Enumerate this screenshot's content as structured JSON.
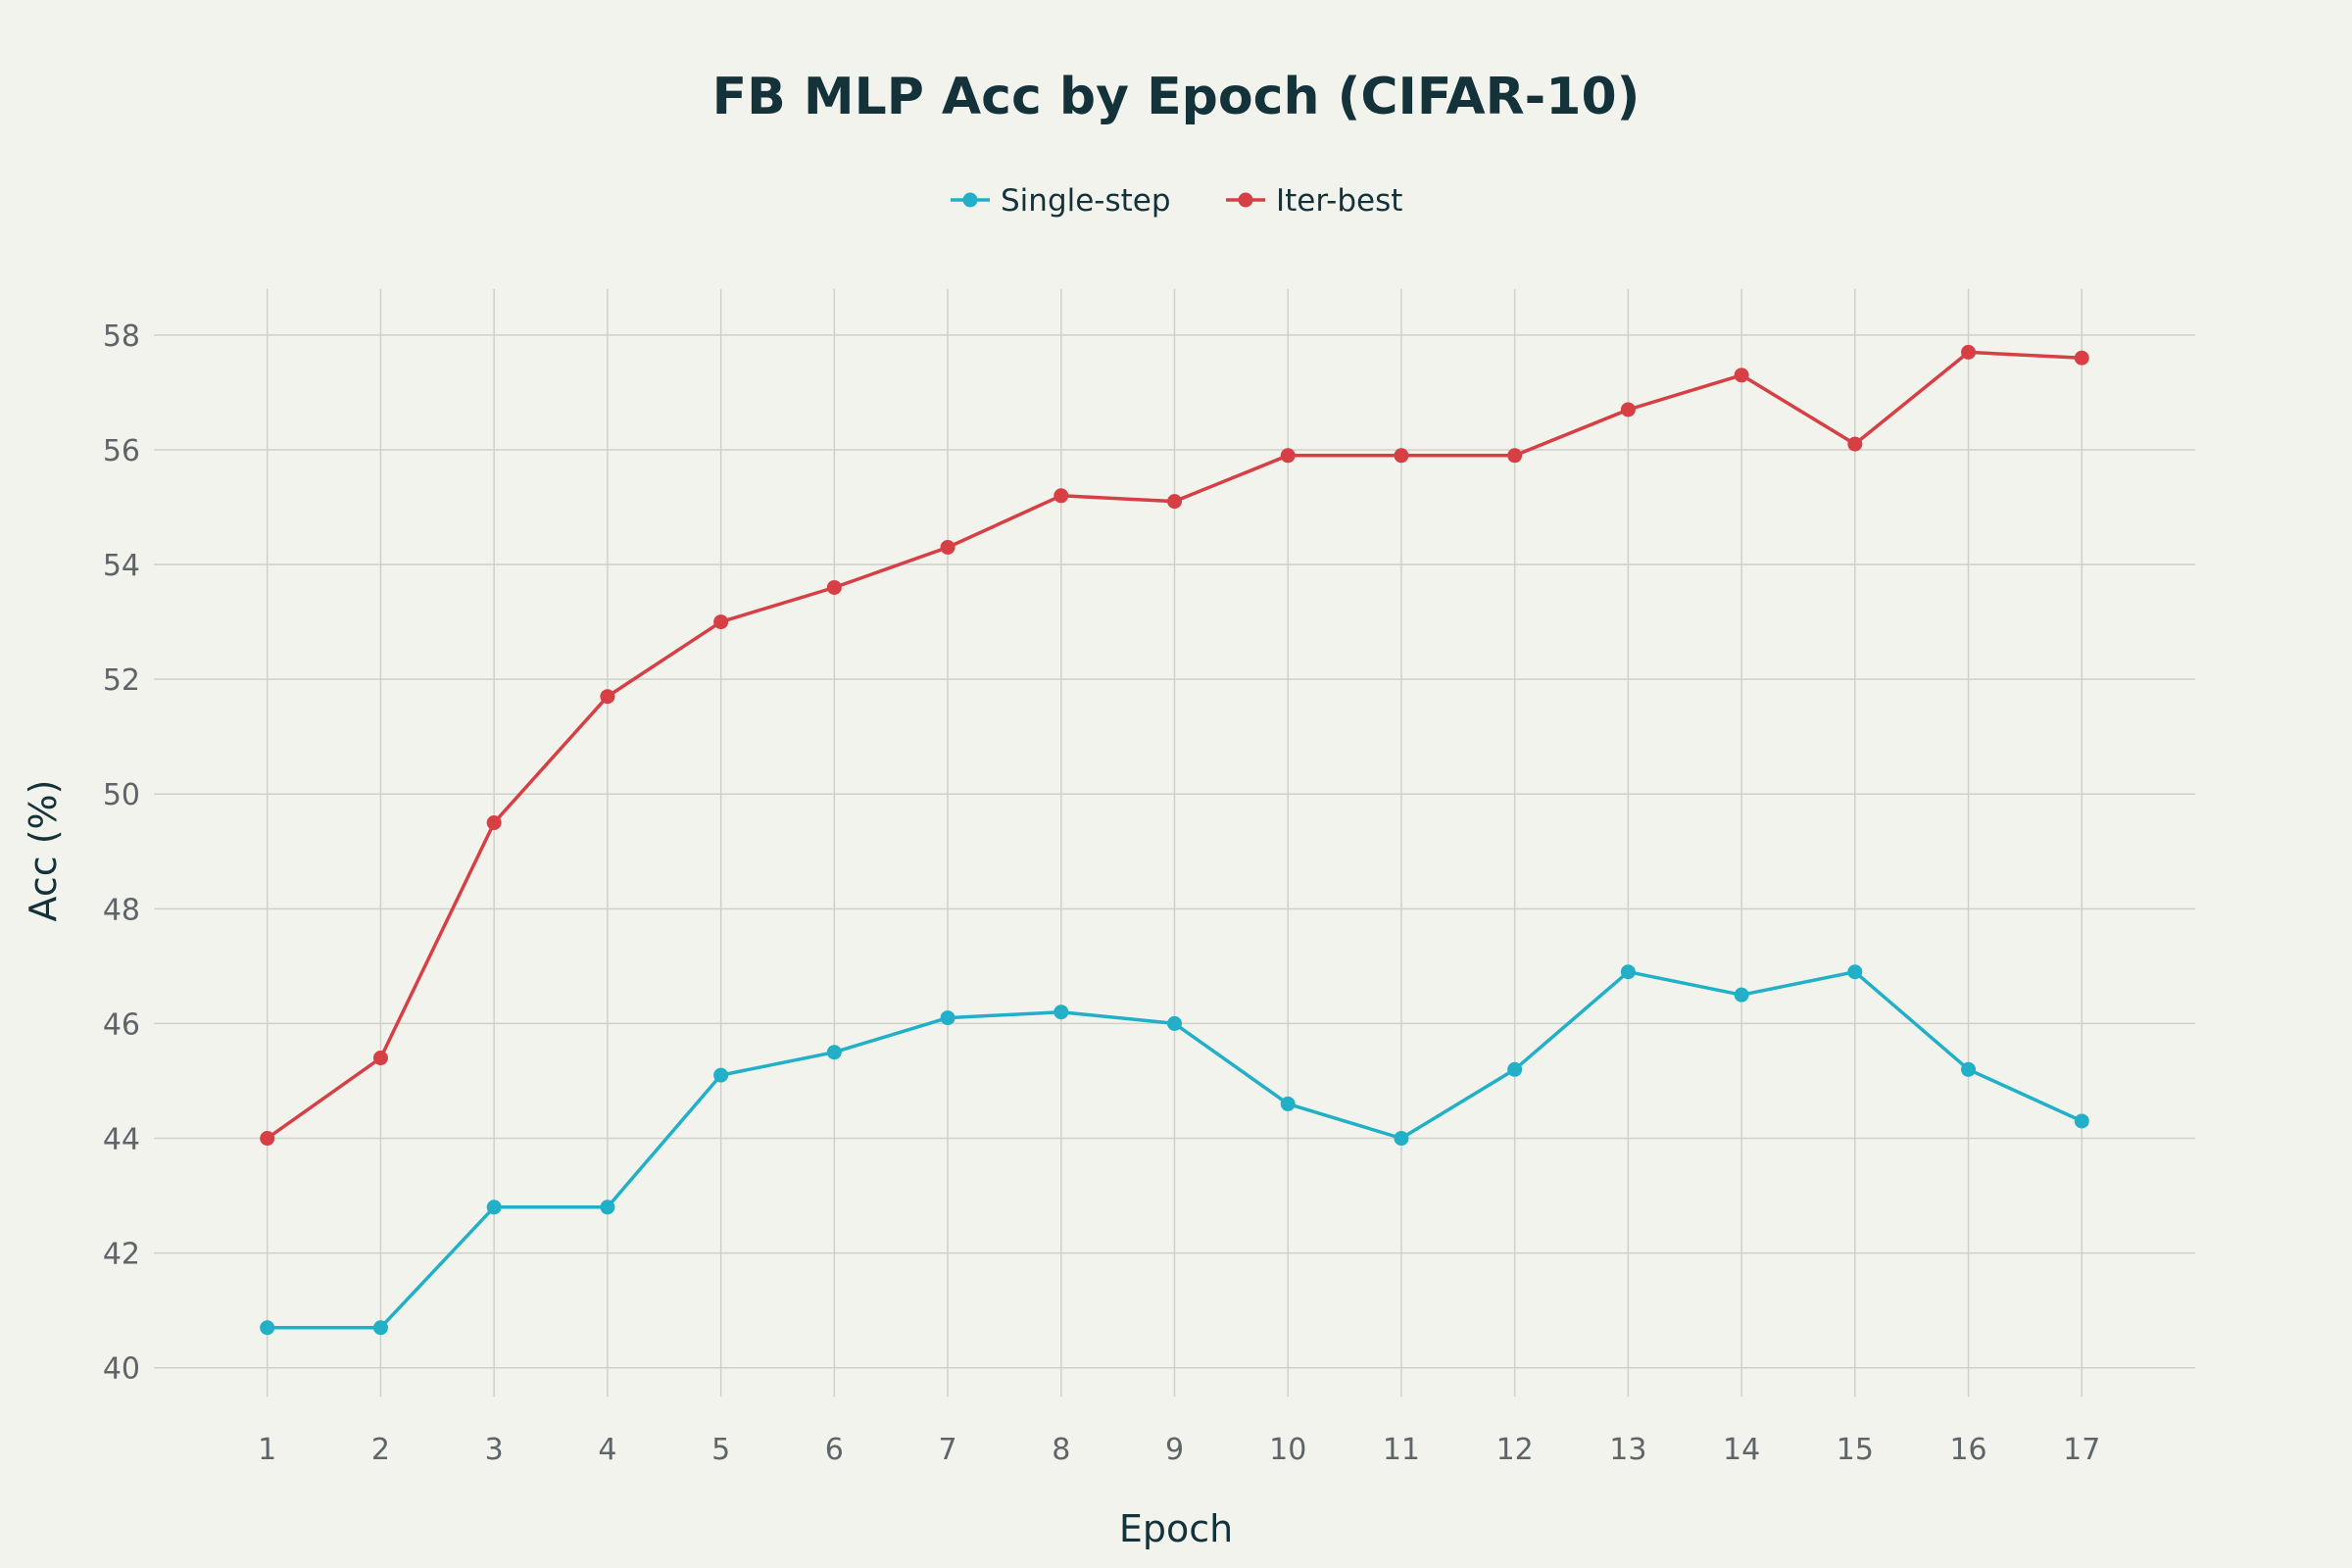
{
  "chart_data": {
    "type": "line",
    "title": "FB MLP Acc by Epoch (CIFAR-10)",
    "xlabel": "Epoch",
    "ylabel": "Acc (%)",
    "x": [
      1,
      2,
      3,
      4,
      5,
      6,
      7,
      8,
      9,
      10,
      11,
      12,
      13,
      14,
      15,
      16,
      17
    ],
    "xlim": [
      0.0,
      18.0
    ],
    "ylim": [
      39.5,
      58.8
    ],
    "yticks": [
      40,
      42,
      44,
      46,
      48,
      50,
      52,
      54,
      56,
      58
    ],
    "grid": true,
    "legend_position": "top-center",
    "series": [
      {
        "name": "Single-step",
        "color": "#21b0c8",
        "values": [
          40.7,
          40.7,
          42.8,
          42.8,
          45.1,
          45.5,
          46.1,
          46.2,
          46.0,
          44.6,
          44.0,
          45.2,
          46.9,
          46.5,
          46.9,
          45.2,
          44.3
        ]
      },
      {
        "name": "Iter-best",
        "color": "#d64045",
        "values": [
          44.0,
          45.4,
          49.5,
          51.7,
          53.0,
          53.6,
          54.3,
          55.2,
          55.1,
          55.9,
          55.9,
          55.9,
          56.7,
          57.3,
          56.1,
          57.7,
          57.6
        ]
      }
    ]
  }
}
